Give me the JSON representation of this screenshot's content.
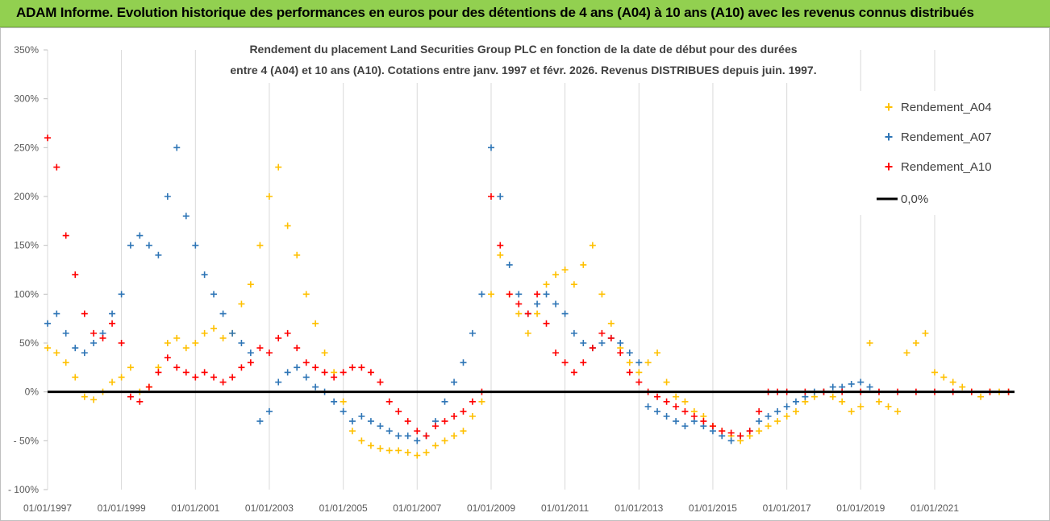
{
  "banner": {
    "title": "ADAM Informe. Evolution historique des performances en euros pour des détentions de 4 ans (A04) à 10 ans (A10) avec les revenus connus distribués"
  },
  "chart_data": {
    "type": "scatter",
    "title_line1": "Rendement du placement Land Securities Group PLC en fonction de la date de début pour des durées",
    "title_line2": "entre 4 (A04) et 10 ans (A10). Cotations entre janv. 1997 et févr. 2026. Revenus DISTRIBUES depuis juin. 1997.",
    "x_tick_labels": [
      "01/01/1997",
      "01/01/1999",
      "01/01/2001",
      "01/01/2003",
      "01/01/2005",
      "01/01/2007",
      "01/01/2009",
      "01/01/2011",
      "01/01/2013",
      "01/01/2015",
      "01/01/2017",
      "01/01/2019",
      "01/01/2021"
    ],
    "y_tick_labels": [
      "350%",
      "300%",
      "250%",
      "200%",
      "150%",
      "100%",
      "50%",
      "0%",
      "- 50%",
      "- 100%"
    ],
    "y_ticks": [
      350,
      300,
      250,
      200,
      150,
      100,
      50,
      0,
      -50,
      -100
    ],
    "ylim": [
      -100,
      350
    ],
    "xlim": [
      "1997-01-01",
      "2023-03-01"
    ],
    "grid": "vertical",
    "legend_position": "right",
    "zero_line_label": "0,0%",
    "colors": {
      "A04": "#ffc000",
      "A07": "#2e75b6",
      "A10": "#ff0000",
      "zero": "#000000",
      "grid": "#d9d9d9"
    },
    "series": [
      {
        "name": "Rendement_A04",
        "key": "A04",
        "x": [
          "1997-01-01",
          "1997-04-01",
          "1997-07-01",
          "1997-10-01",
          "1998-01-01",
          "1998-04-01",
          "1998-07-01",
          "1998-10-01",
          "1999-01-01",
          "1999-04-01",
          "1999-07-01",
          "1999-10-01",
          "2000-01-01",
          "2000-04-01",
          "2000-07-01",
          "2000-10-01",
          "2001-01-01",
          "2001-04-01",
          "2001-07-01",
          "2001-10-01",
          "2002-01-01",
          "2002-04-01",
          "2002-07-01",
          "2002-10-01",
          "2003-01-01",
          "2003-04-01",
          "2003-07-01",
          "2003-10-01",
          "2004-01-01",
          "2004-04-01",
          "2004-07-01",
          "2004-10-01",
          "2005-01-01",
          "2005-04-01",
          "2005-07-01",
          "2005-10-01",
          "2006-01-01",
          "2006-04-01",
          "2006-07-01",
          "2006-10-01",
          "2007-01-01",
          "2007-04-01",
          "2007-07-01",
          "2007-10-01",
          "2008-01-01",
          "2008-04-01",
          "2008-07-01",
          "2008-10-01",
          "2009-01-01",
          "2009-04-01",
          "2009-07-01",
          "2009-10-01",
          "2010-01-01",
          "2010-04-01",
          "2010-07-01",
          "2010-10-01",
          "2011-01-01",
          "2011-04-01",
          "2011-07-01",
          "2011-10-01",
          "2012-01-01",
          "2012-04-01",
          "2012-07-01",
          "2012-10-01",
          "2013-01-01",
          "2013-04-01",
          "2013-07-01",
          "2013-10-01",
          "2014-01-01",
          "2014-04-01",
          "2014-07-01",
          "2014-10-01",
          "2015-01-01",
          "2015-04-01",
          "2015-07-01",
          "2015-10-01",
          "2016-01-01",
          "2016-04-01",
          "2016-07-01",
          "2016-10-01",
          "2017-01-01",
          "2017-04-01",
          "2017-07-01",
          "2017-10-01",
          "2018-01-01",
          "2018-04-01",
          "2018-07-01",
          "2018-10-01",
          "2019-01-01",
          "2019-04-01",
          "2019-07-01",
          "2019-10-01",
          "2020-01-01",
          "2020-04-01",
          "2020-07-01",
          "2020-10-01",
          "2021-01-01",
          "2021-04-01",
          "2021-07-01",
          "2021-10-01",
          "2022-01-01",
          "2022-04-01",
          "2022-07-01",
          "2022-10-01",
          "2023-01-01"
        ],
        "values": [
          45,
          40,
          30,
          15,
          -5,
          -8,
          0,
          10,
          15,
          25,
          0,
          5,
          25,
          50,
          55,
          45,
          50,
          60,
          65,
          55,
          60,
          90,
          110,
          150,
          200,
          230,
          170,
          140,
          100,
          70,
          40,
          20,
          -10,
          -40,
          -50,
          -55,
          -58,
          -60,
          -60,
          -62,
          -65,
          -62,
          -55,
          -50,
          -45,
          -40,
          -25,
          -10,
          100,
          140,
          100,
          80,
          60,
          80,
          110,
          120,
          125,
          110,
          130,
          150,
          100,
          70,
          45,
          30,
          20,
          30,
          40,
          10,
          -5,
          -10,
          -20,
          -25,
          -35,
          -40,
          -45,
          -50,
          -45,
          -40,
          -35,
          -30,
          -25,
          -20,
          -10,
          -5,
          0,
          -5,
          -10,
          -20,
          -15,
          50,
          -10,
          -15,
          -20,
          40,
          50,
          60,
          20,
          15,
          10,
          5,
          0,
          -5,
          0,
          0,
          0
        ]
      },
      {
        "name": "Rendement_A07",
        "key": "A07",
        "x": [
          "1997-01-01",
          "1997-04-01",
          "1997-07-01",
          "1997-10-01",
          "1998-01-01",
          "1998-04-01",
          "1998-07-01",
          "1998-10-01",
          "1999-01-01",
          "1999-04-01",
          "1999-07-01",
          "1999-10-01",
          "2000-01-01",
          "2000-04-01",
          "2000-07-01",
          "2000-10-01",
          "2001-01-01",
          "2001-04-01",
          "2001-07-01",
          "2001-10-01",
          "2002-01-01",
          "2002-04-01",
          "2002-07-01",
          "2002-10-01",
          "2003-01-01",
          "2003-04-01",
          "2003-07-01",
          "2003-10-01",
          "2004-01-01",
          "2004-04-01",
          "2004-07-01",
          "2004-10-01",
          "2005-01-01",
          "2005-04-01",
          "2005-07-01",
          "2005-10-01",
          "2006-01-01",
          "2006-04-01",
          "2006-07-01",
          "2006-10-01",
          "2007-01-01",
          "2007-04-01",
          "2007-07-01",
          "2007-10-01",
          "2008-01-01",
          "2008-04-01",
          "2008-07-01",
          "2008-10-01",
          "2009-01-01",
          "2009-04-01",
          "2009-07-01",
          "2009-10-01",
          "2010-01-01",
          "2010-04-01",
          "2010-07-01",
          "2010-10-01",
          "2011-01-01",
          "2011-04-01",
          "2011-07-01",
          "2011-10-01",
          "2012-01-01",
          "2012-04-01",
          "2012-07-01",
          "2012-10-01",
          "2013-01-01",
          "2013-04-01",
          "2013-07-01",
          "2013-10-01",
          "2014-01-01",
          "2014-04-01",
          "2014-07-01",
          "2014-10-01",
          "2015-01-01",
          "2015-04-01",
          "2015-07-01",
          "2015-10-01",
          "2016-01-01",
          "2016-04-01",
          "2016-07-01",
          "2016-10-01",
          "2017-01-01",
          "2017-04-01",
          "2017-07-01",
          "2017-10-01",
          "2018-01-01",
          "2018-04-01",
          "2018-07-01",
          "2018-10-01",
          "2019-01-01",
          "2019-04-01"
        ],
        "values": [
          70,
          80,
          60,
          45,
          40,
          50,
          60,
          80,
          100,
          150,
          160,
          150,
          140,
          200,
          250,
          180,
          150,
          120,
          100,
          80,
          60,
          50,
          40,
          -30,
          -20,
          10,
          20,
          25,
          15,
          5,
          0,
          -10,
          -20,
          -30,
          -25,
          -30,
          -35,
          -40,
          -45,
          -45,
          -50,
          -45,
          -30,
          -10,
          10,
          30,
          60,
          100,
          250,
          200,
          130,
          100,
          80,
          90,
          100,
          90,
          80,
          60,
          50,
          45,
          50,
          55,
          50,
          40,
          30,
          -15,
          -20,
          -25,
          -30,
          -35,
          -30,
          -35,
          -40,
          -45,
          -50,
          -45,
          -40,
          -30,
          -25,
          -20,
          -15,
          -10,
          -5,
          0,
          0,
          5,
          5,
          8,
          10,
          5
        ]
      },
      {
        "name": "Rendement_A10",
        "key": "A10",
        "x": [
          "1997-01-01",
          "1997-04-01",
          "1997-07-01",
          "1997-10-01",
          "1998-01-01",
          "1998-04-01",
          "1998-07-01",
          "1998-10-01",
          "1999-01-01",
          "1999-04-01",
          "1999-07-01",
          "1999-10-01",
          "2000-01-01",
          "2000-04-01",
          "2000-07-01",
          "2000-10-01",
          "2001-01-01",
          "2001-04-01",
          "2001-07-01",
          "2001-10-01",
          "2002-01-01",
          "2002-04-01",
          "2002-07-01",
          "2002-10-01",
          "2003-01-01",
          "2003-04-01",
          "2003-07-01",
          "2003-10-01",
          "2004-01-01",
          "2004-04-01",
          "2004-07-01",
          "2004-10-01",
          "2005-01-01",
          "2005-04-01",
          "2005-07-01",
          "2005-10-01",
          "2006-01-01",
          "2006-04-01",
          "2006-07-01",
          "2006-10-01",
          "2007-01-01",
          "2007-04-01",
          "2007-07-01",
          "2007-10-01",
          "2008-01-01",
          "2008-04-01",
          "2008-07-01",
          "2008-10-01",
          "2009-01-01",
          "2009-04-01",
          "2009-07-01",
          "2009-10-01",
          "2010-01-01",
          "2010-04-01",
          "2010-07-01",
          "2010-10-01",
          "2011-01-01",
          "2011-04-01",
          "2011-07-01",
          "2011-10-01",
          "2012-01-01",
          "2012-04-01",
          "2012-07-01",
          "2012-10-01",
          "2013-01-01",
          "2013-04-01",
          "2013-07-01",
          "2013-10-01",
          "2014-01-01",
          "2014-04-01",
          "2014-07-01",
          "2014-10-01",
          "2015-01-01",
          "2015-04-01",
          "2015-07-01",
          "2015-10-01",
          "2016-01-01",
          "2016-04-01",
          "2016-07-01",
          "2016-10-01",
          "2017-01-01",
          "2017-07-01",
          "2018-01-01",
          "2018-07-01",
          "2019-01-01",
          "2019-07-01",
          "2020-01-01",
          "2020-07-01",
          "2021-01-01",
          "2021-07-01",
          "2022-01-01",
          "2022-07-01",
          "2023-01-01"
        ],
        "values": [
          260,
          230,
          160,
          120,
          80,
          60,
          55,
          70,
          50,
          -5,
          -10,
          5,
          20,
          35,
          25,
          20,
          15,
          20,
          15,
          10,
          15,
          25,
          30,
          45,
          40,
          55,
          60,
          45,
          30,
          25,
          20,
          15,
          20,
          25,
          25,
          20,
          10,
          -10,
          -20,
          -30,
          -40,
          -45,
          -35,
          -30,
          -25,
          -20,
          -10,
          0,
          200,
          150,
          100,
          90,
          80,
          100,
          70,
          40,
          30,
          20,
          30,
          45,
          60,
          55,
          40,
          20,
          10,
          0,
          -5,
          -10,
          -15,
          -20,
          -25,
          -30,
          -35,
          -40,
          -42,
          -45,
          -40,
          -20,
          0,
          0,
          0,
          0,
          0,
          0,
          0,
          0,
          0,
          0,
          0,
          0,
          0,
          0,
          0
        ]
      }
    ]
  }
}
